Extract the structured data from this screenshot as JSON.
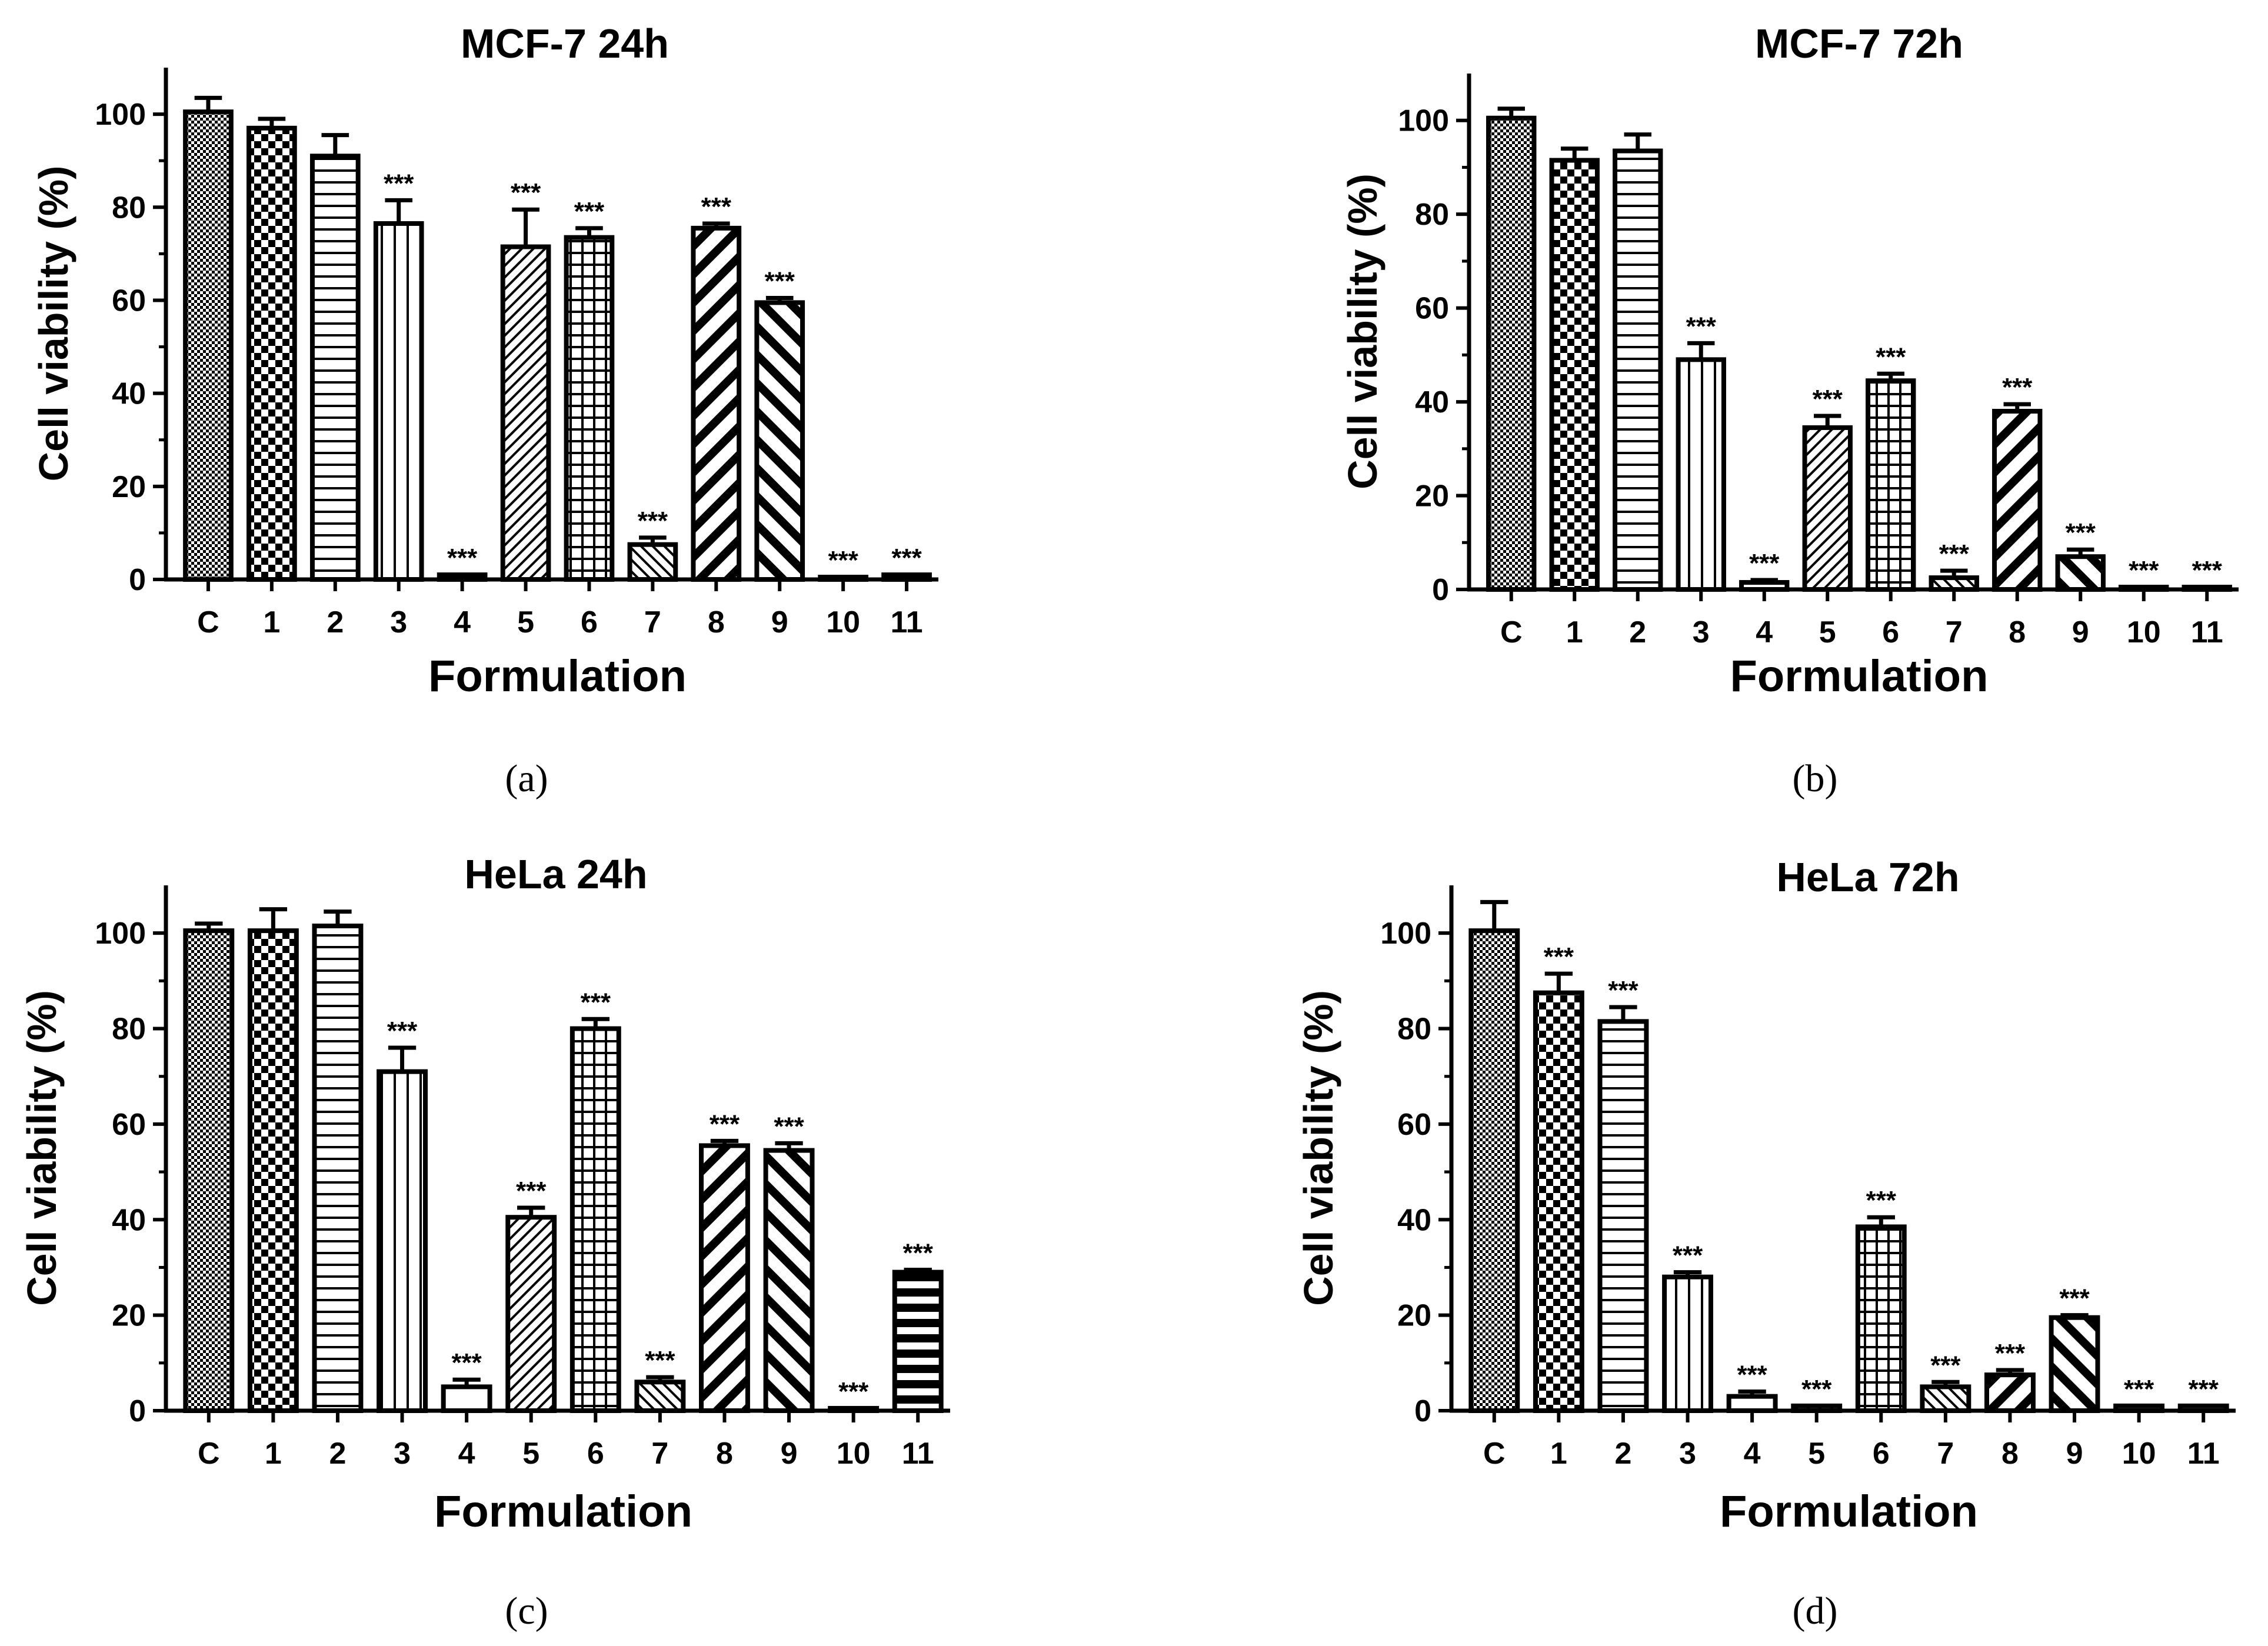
{
  "chart_data": [
    {
      "type": "bar",
      "panel": "(a)",
      "title": "MCF-7 24h",
      "xlabel": "Formulation",
      "ylabel": "Cell viability (%)",
      "categories": [
        "C",
        "1",
        "2",
        "3",
        "4",
        "5",
        "6",
        "7",
        "8",
        "9",
        "10",
        "11"
      ],
      "values": [
        100.5,
        97,
        91,
        76.5,
        1,
        71.5,
        73.5,
        7.5,
        75.5,
        59.5,
        0.5,
        1
      ],
      "errors": [
        3,
        2,
        4.5,
        5,
        0,
        8,
        2,
        1.5,
        1,
        1,
        0,
        0
      ],
      "significance": [
        "",
        "",
        "",
        "***",
        "***",
        "***",
        "***",
        "***",
        "***",
        "***",
        "***",
        "***"
      ],
      "yticks": [
        "0",
        "20",
        "40",
        "60",
        "80",
        "100"
      ],
      "ylim": [
        0,
        110
      ]
    },
    {
      "type": "bar",
      "panel": "(b)",
      "title": "MCF-7 72h",
      "xlabel": "Formulation",
      "ylabel": "Cell viability (%)",
      "categories": [
        "C",
        "1",
        "2",
        "3",
        "4",
        "5",
        "6",
        "7",
        "8",
        "9",
        "10",
        "11"
      ],
      "values": [
        100.5,
        91.5,
        93.5,
        49,
        1.5,
        34.5,
        44.5,
        2.5,
        38,
        7,
        0.5,
        0.5
      ],
      "errors": [
        2,
        2.5,
        3.5,
        3.5,
        0.5,
        2.5,
        1.5,
        1.5,
        1.5,
        1.5,
        0,
        0
      ],
      "significance": [
        "",
        "",
        "",
        "***",
        "***",
        "***",
        "***",
        "***",
        "***",
        "***",
        "***",
        "***"
      ],
      "yticks": [
        "0",
        "20",
        "40",
        "60",
        "80",
        "100"
      ],
      "ylim": [
        0,
        110
      ]
    },
    {
      "type": "bar",
      "panel": "(c)",
      "title": "HeLa 24h",
      "xlabel": "Formulation",
      "ylabel": "Cell viability (%)",
      "categories": [
        "C",
        "1",
        "2",
        "3",
        "4",
        "5",
        "6",
        "7",
        "8",
        "9",
        "10",
        "11"
      ],
      "values": [
        100.5,
        100.5,
        101.5,
        71,
        5,
        40.5,
        80,
        6,
        55.5,
        54.5,
        0.5,
        29
      ],
      "errors": [
        1.5,
        4.5,
        3,
        5,
        1.5,
        2,
        2,
        1,
        1,
        1.5,
        0,
        0.5
      ],
      "significance": [
        "",
        "",
        "",
        "***",
        "***",
        "***",
        "***",
        "***",
        "***",
        "***",
        "***",
        "***"
      ],
      "yticks": [
        "0",
        "20",
        "40",
        "60",
        "80",
        "100"
      ],
      "ylim": [
        0,
        110
      ]
    },
    {
      "type": "bar",
      "panel": "(d)",
      "title": "HeLa 72h",
      "xlabel": "Formulation",
      "ylabel": "Cell viability (%)",
      "categories": [
        "C",
        "1",
        "2",
        "3",
        "4",
        "5",
        "6",
        "7",
        "8",
        "9",
        "10",
        "11"
      ],
      "values": [
        100.5,
        87.5,
        81.5,
        28,
        3,
        1,
        38.5,
        5,
        7.5,
        19.5,
        1,
        1
      ],
      "errors": [
        6,
        4,
        3,
        1,
        1,
        0,
        2,
        1,
        1,
        0.5,
        0,
        0
      ],
      "significance": [
        "",
        "***",
        "***",
        "***",
        "***",
        "***",
        "***",
        "***",
        "***",
        "***",
        "***",
        "***"
      ],
      "yticks": [
        "0",
        "20",
        "40",
        "60",
        "80",
        "100"
      ],
      "ylim": [
        0,
        110
      ]
    }
  ]
}
